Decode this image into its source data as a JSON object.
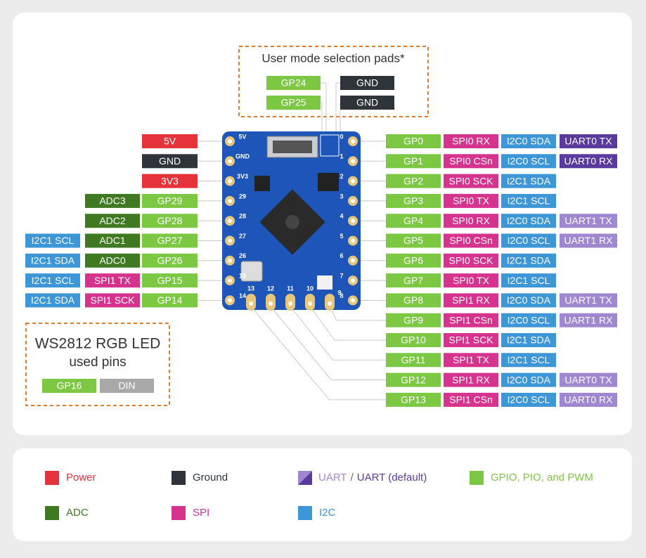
{
  "selection_pads": {
    "title": "User mode selection pads*",
    "pads": [
      [
        {
          "text": "GP24",
          "color": "#7dc843"
        },
        {
          "text": "GND",
          "color": "#2f343b"
        }
      ],
      [
        {
          "text": "GP25",
          "color": "#7dc843"
        },
        {
          "text": "GND",
          "color": "#2f343b"
        }
      ]
    ]
  },
  "left_rows": [
    [
      {
        "text": "5V",
        "color": "#e4333b"
      }
    ],
    [
      {
        "text": "GND",
        "color": "#2f343b"
      }
    ],
    [
      {
        "text": "3V3",
        "color": "#e4333b"
      }
    ],
    [
      {
        "text": "ADC3",
        "color": "#3f7a22"
      },
      {
        "text": "GP29",
        "color": "#7dc843"
      }
    ],
    [
      {
        "text": "ADC2",
        "color": "#3f7a22"
      },
      {
        "text": "GP28",
        "color": "#7dc843"
      }
    ],
    [
      {
        "text": "I2C1 SCL",
        "color": "#3d96d6"
      },
      {
        "text": "ADC1",
        "color": "#3f7a22"
      },
      {
        "text": "GP27",
        "color": "#7dc843"
      }
    ],
    [
      {
        "text": "I2C1 SDA",
        "color": "#3d96d6"
      },
      {
        "text": "ADC0",
        "color": "#3f7a22"
      },
      {
        "text": "GP26",
        "color": "#7dc843"
      }
    ],
    [
      {
        "text": "I2C1 SCL",
        "color": "#3d96d6"
      },
      {
        "text": "SPI1 TX",
        "color": "#d6338f"
      },
      {
        "text": "GP15",
        "color": "#7dc843"
      }
    ],
    [
      {
        "text": "I2C1 SDA",
        "color": "#3d96d6"
      },
      {
        "text": "SPI1 SCK",
        "color": "#d6338f"
      },
      {
        "text": "GP14",
        "color": "#7dc843"
      }
    ]
  ],
  "right_rows": [
    [
      {
        "text": "GP0",
        "color": "#7dc843"
      },
      {
        "text": "SPI0 RX",
        "color": "#d6338f"
      },
      {
        "text": "I2C0 SDA",
        "color": "#3d96d6"
      },
      {
        "text": "UART0 TX",
        "color": "#5b3a9e"
      }
    ],
    [
      {
        "text": "GP1",
        "color": "#7dc843"
      },
      {
        "text": "SPI0 CSn",
        "color": "#d6338f"
      },
      {
        "text": "I2C0 SCL",
        "color": "#3d96d6"
      },
      {
        "text": "UART0 RX",
        "color": "#5b3a9e"
      }
    ],
    [
      {
        "text": "GP2",
        "color": "#7dc843"
      },
      {
        "text": "SPI0 SCK",
        "color": "#d6338f"
      },
      {
        "text": "I2C1 SDA",
        "color": "#3d96d6"
      }
    ],
    [
      {
        "text": "GP3",
        "color": "#7dc843"
      },
      {
        "text": "SPI0 TX",
        "color": "#d6338f"
      },
      {
        "text": "I2C1 SCL",
        "color": "#3d96d6"
      }
    ],
    [
      {
        "text": "GP4",
        "color": "#7dc843"
      },
      {
        "text": "SPI0 RX",
        "color": "#d6338f"
      },
      {
        "text": "I2C0 SDA",
        "color": "#3d96d6"
      },
      {
        "text": "UART1 TX",
        "color": "#9f88d0"
      }
    ],
    [
      {
        "text": "GP5",
        "color": "#7dc843"
      },
      {
        "text": "SPI0 CSn",
        "color": "#d6338f"
      },
      {
        "text": "I2C0 SCL",
        "color": "#3d96d6"
      },
      {
        "text": "UART1 RX",
        "color": "#9f88d0"
      }
    ],
    [
      {
        "text": "GP6",
        "color": "#7dc843"
      },
      {
        "text": "SPI0 SCK",
        "color": "#d6338f"
      },
      {
        "text": "I2C1 SDA",
        "color": "#3d96d6"
      }
    ],
    [
      {
        "text": "GP7",
        "color": "#7dc843"
      },
      {
        "text": "SPI0 TX",
        "color": "#d6338f"
      },
      {
        "text": "I2C1 SCL",
        "color": "#3d96d6"
      }
    ],
    [
      {
        "text": "GP8",
        "color": "#7dc843"
      },
      {
        "text": "SPI1 RX",
        "color": "#d6338f"
      },
      {
        "text": "I2C0 SDA",
        "color": "#3d96d6"
      },
      {
        "text": "UART1 TX",
        "color": "#9f88d0"
      }
    ],
    [
      {
        "text": "GP9",
        "color": "#7dc843"
      },
      {
        "text": "SPI1 CSn",
        "color": "#d6338f"
      },
      {
        "text": "I2C0 SCL",
        "color": "#3d96d6"
      },
      {
        "text": "UART1 RX",
        "color": "#9f88d0"
      }
    ],
    [
      {
        "text": "GP10",
        "color": "#7dc843"
      },
      {
        "text": "SPI1 SCK",
        "color": "#d6338f"
      },
      {
        "text": "I2C1 SDA",
        "color": "#3d96d6"
      }
    ],
    [
      {
        "text": "GP11",
        "color": "#7dc843"
      },
      {
        "text": "SPI1 TX",
        "color": "#d6338f"
      },
      {
        "text": "I2C1 SCL",
        "color": "#3d96d6"
      }
    ],
    [
      {
        "text": "GP12",
        "color": "#7dc843"
      },
      {
        "text": "SPI1 RX",
        "color": "#d6338f"
      },
      {
        "text": "I2C0 SDA",
        "color": "#3d96d6"
      },
      {
        "text": "UART0 TX",
        "color": "#9f88d0"
      }
    ],
    [
      {
        "text": "GP13",
        "color": "#7dc843"
      },
      {
        "text": "SPI1 CSn",
        "color": "#d6338f"
      },
      {
        "text": "I2C0 SCL",
        "color": "#3d96d6"
      },
      {
        "text": "UART0 RX",
        "color": "#9f88d0"
      }
    ]
  ],
  "board": {
    "left_labels": [
      "5V",
      "GND",
      "3V3",
      "29",
      "28",
      "27",
      "26",
      "15",
      "14"
    ],
    "right_labels": [
      "0",
      "1",
      "2",
      "3",
      "4",
      "5",
      "6",
      "7",
      "8"
    ],
    "bottom_labels": [
      "13",
      "12",
      "11",
      "10",
      "9"
    ]
  },
  "led_box": {
    "title": "WS2812 RGB LED",
    "subtitle": "used pins",
    "pins": [
      {
        "text": "GP16",
        "color": "#7dc843"
      },
      {
        "text": "DIN",
        "color": "#a8a8a8"
      }
    ]
  },
  "legend": [
    {
      "label": "Power",
      "color": "#e4333b"
    },
    {
      "label": "Ground",
      "color": "#2f343b"
    },
    {
      "labels": [
        "UART",
        "/",
        "UART (default)"
      ],
      "colors": [
        "#9f88d0",
        "#5b3a9e"
      ]
    },
    {
      "label": "GPIO, PIO, and PWM",
      "color": "#7dc843"
    },
    {
      "label": "ADC",
      "color": "#3f7a22"
    },
    {
      "label": "SPI",
      "color": "#d6338f"
    },
    {
      "label": "I2C",
      "color": "#3d96d6"
    }
  ]
}
